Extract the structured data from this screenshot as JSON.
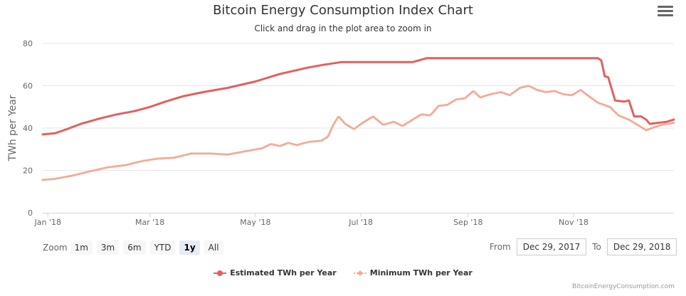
{
  "header": {
    "title": "Bitcoin Energy Consumption Index Chart",
    "subtitle": "Click and drag in the plot area to zoom in"
  },
  "icons": {
    "menu": "hamburger-menu-icon"
  },
  "zoom": {
    "label": "Zoom",
    "buttons": [
      "1m",
      "3m",
      "6m",
      "YTD",
      "1y",
      "All"
    ],
    "active": "1y"
  },
  "range": {
    "from_label": "From",
    "from_value": "Dec 29, 2017",
    "to_label": "To",
    "to_value": "Dec 29, 2018"
  },
  "credit": "BitcoinEnergyConsumption.com",
  "chart_data": {
    "type": "line",
    "ylabel": "TWh per Year",
    "ylim": [
      0,
      80
    ],
    "yticks": [
      0,
      20,
      40,
      60,
      80
    ],
    "xlim": [
      "2017-12-29",
      "2018-12-29"
    ],
    "xticks": [
      {
        "date": "2018-01-01",
        "label": "Jan '18"
      },
      {
        "date": "2018-03-01",
        "label": "Mar '18"
      },
      {
        "date": "2018-05-01",
        "label": "May '18"
      },
      {
        "date": "2018-07-01",
        "label": "Jul '18"
      },
      {
        "date": "2018-09-01",
        "label": "Sep '18"
      },
      {
        "date": "2018-11-01",
        "label": "Nov '18"
      }
    ],
    "grid": true,
    "legend_position": "bottom",
    "series": [
      {
        "name": "Estimated TWh per Year",
        "color": "#e45f5f",
        "style": "solid",
        "points": [
          [
            "2017-12-29",
            37.0
          ],
          [
            "2018-01-05",
            37.5
          ],
          [
            "2018-01-12",
            39.5
          ],
          [
            "2018-01-20",
            42.0
          ],
          [
            "2018-01-31",
            44.5
          ],
          [
            "2018-02-10",
            46.5
          ],
          [
            "2018-02-20",
            48.0
          ],
          [
            "2018-03-01",
            50.0
          ],
          [
            "2018-03-10",
            52.5
          ],
          [
            "2018-03-20",
            55.0
          ],
          [
            "2018-04-01",
            57.0
          ],
          [
            "2018-04-15",
            59.0
          ],
          [
            "2018-05-01",
            62.0
          ],
          [
            "2018-05-15",
            65.5
          ],
          [
            "2018-05-31",
            68.5
          ],
          [
            "2018-06-10",
            70.0
          ],
          [
            "2018-06-20",
            71.2
          ],
          [
            "2018-07-01",
            71.2
          ],
          [
            "2018-07-20",
            71.2
          ],
          [
            "2018-07-31",
            71.2
          ],
          [
            "2018-08-08",
            73.0
          ],
          [
            "2018-08-20",
            73.0
          ],
          [
            "2018-09-01",
            73.0
          ],
          [
            "2018-10-01",
            73.0
          ],
          [
            "2018-11-01",
            73.0
          ],
          [
            "2018-11-15",
            73.0
          ],
          [
            "2018-11-17",
            72.0
          ],
          [
            "2018-11-19",
            64.5
          ],
          [
            "2018-11-21",
            64.0
          ],
          [
            "2018-11-25",
            53.0
          ],
          [
            "2018-11-30",
            52.5
          ],
          [
            "2018-12-03",
            53.0
          ],
          [
            "2018-12-06",
            45.5
          ],
          [
            "2018-12-10",
            45.5
          ],
          [
            "2018-12-13",
            44.0
          ],
          [
            "2018-12-15",
            42.0
          ],
          [
            "2018-12-20",
            42.5
          ],
          [
            "2018-12-25",
            43.0
          ],
          [
            "2018-12-29",
            44.0
          ]
        ]
      },
      {
        "name": "Minimum TWh per Year",
        "color": "#f4a994",
        "style": "dotted",
        "points": [
          [
            "2017-12-29",
            15.5
          ],
          [
            "2018-01-05",
            16.0
          ],
          [
            "2018-01-15",
            17.5
          ],
          [
            "2018-01-25",
            19.5
          ],
          [
            "2018-02-05",
            21.5
          ],
          [
            "2018-02-15",
            22.5
          ],
          [
            "2018-02-25",
            24.5
          ],
          [
            "2018-03-05",
            25.5
          ],
          [
            "2018-03-15",
            26.0
          ],
          [
            "2018-03-25",
            28.0
          ],
          [
            "2018-04-05",
            28.0
          ],
          [
            "2018-04-15",
            27.5
          ],
          [
            "2018-04-25",
            29.0
          ],
          [
            "2018-05-05",
            30.5
          ],
          [
            "2018-05-10",
            32.5
          ],
          [
            "2018-05-15",
            31.5
          ],
          [
            "2018-05-20",
            33.0
          ],
          [
            "2018-05-25",
            32.0
          ],
          [
            "2018-06-01",
            33.5
          ],
          [
            "2018-06-08",
            34.0
          ],
          [
            "2018-06-12",
            36.0
          ],
          [
            "2018-06-15",
            41.5
          ],
          [
            "2018-06-18",
            45.5
          ],
          [
            "2018-06-22",
            42.0
          ],
          [
            "2018-06-27",
            39.5
          ],
          [
            "2018-07-02",
            42.5
          ],
          [
            "2018-07-08",
            45.5
          ],
          [
            "2018-07-14",
            41.5
          ],
          [
            "2018-07-20",
            43.0
          ],
          [
            "2018-07-25",
            41.0
          ],
          [
            "2018-07-31",
            44.0
          ],
          [
            "2018-08-05",
            46.5
          ],
          [
            "2018-08-10",
            46.0
          ],
          [
            "2018-08-15",
            50.5
          ],
          [
            "2018-08-20",
            51.0
          ],
          [
            "2018-08-25",
            53.5
          ],
          [
            "2018-08-30",
            54.0
          ],
          [
            "2018-09-04",
            57.5
          ],
          [
            "2018-09-08",
            54.5
          ],
          [
            "2018-09-14",
            56.0
          ],
          [
            "2018-09-20",
            57.0
          ],
          [
            "2018-09-25",
            55.5
          ],
          [
            "2018-10-01",
            59.0
          ],
          [
            "2018-10-06",
            60.0
          ],
          [
            "2018-10-11",
            58.0
          ],
          [
            "2018-10-16",
            57.0
          ],
          [
            "2018-10-21",
            57.5
          ],
          [
            "2018-10-26",
            56.0
          ],
          [
            "2018-10-31",
            55.5
          ],
          [
            "2018-11-05",
            58.0
          ],
          [
            "2018-11-10",
            55.0
          ],
          [
            "2018-11-15",
            52.0
          ],
          [
            "2018-11-22",
            50.0
          ],
          [
            "2018-11-27",
            46.0
          ],
          [
            "2018-12-03",
            44.0
          ],
          [
            "2018-12-08",
            41.5
          ],
          [
            "2018-12-13",
            39.0
          ],
          [
            "2018-12-18",
            40.5
          ],
          [
            "2018-12-22",
            41.5
          ],
          [
            "2018-12-29",
            42.5
          ]
        ]
      }
    ]
  }
}
